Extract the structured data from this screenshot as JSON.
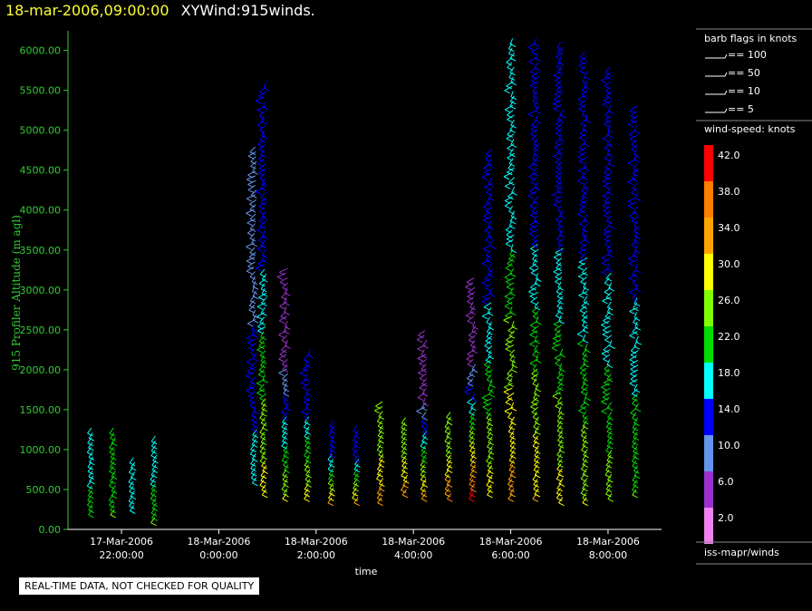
{
  "title": {
    "time": "18-mar-2006,09:00:00",
    "name": "XYWind:915winds."
  },
  "qc_note": "REAL-TIME DATA, NOT CHECKED FOR QUALITY",
  "source_label": "iss-mapr/winds",
  "colors": {
    "axis": "#33cc33",
    "text": "#ffffff",
    "background": "#000000"
  },
  "chart_data": {
    "type": "wind-barb",
    "ylabel": "915 Profiler Altitude (m agl)",
    "xlabel": "time",
    "ylim": [
      0,
      6200
    ],
    "yticks": [
      "0.00",
      "500.00",
      "1000.00",
      "1500.00",
      "2000.00",
      "2500.00",
      "3000.00",
      "3500.00",
      "4000.00",
      "4500.00",
      "5000.00",
      "5500.00",
      "6000.00"
    ],
    "xtick_values": [
      -2,
      0,
      2,
      4,
      6,
      8
    ],
    "xticks": [
      {
        "date": "17-Mar-2006",
        "time": "22:00:00"
      },
      {
        "date": "18-Mar-2006",
        "time": "0:00:00"
      },
      {
        "date": "18-Mar-2006",
        "time": "2:00:00"
      },
      {
        "date": "18-Mar-2006",
        "time": "4:00:00"
      },
      {
        "date": "18-Mar-2006",
        "time": "6:00:00"
      },
      {
        "date": "18-Mar-2006",
        "time": "8:00:00"
      }
    ],
    "barb_legend": {
      "title": "barb flags in knots",
      "items": [
        "== 100",
        "== 50",
        "== 10",
        "== 5"
      ]
    },
    "speed_legend": {
      "title": "wind-speed: knots",
      "levels": [
        {
          "label": "42.0",
          "color": "#ff0000"
        },
        {
          "label": "38.0",
          "color": "#ff7f00"
        },
        {
          "label": "34.0",
          "color": "#ffa500"
        },
        {
          "label": "30.0",
          "color": "#ffff00"
        },
        {
          "label": "26.0",
          "color": "#7fff00"
        },
        {
          "label": "22.0",
          "color": "#00dd00"
        },
        {
          "label": "18.0",
          "color": "#00ffff"
        },
        {
          "label": "14.0",
          "color": "#0000ff"
        },
        {
          "label": "10.0",
          "color": "#6495ed"
        },
        {
          "label": "6.0",
          "color": "#9932cc"
        },
        {
          "label": "2.0",
          "color": "#ee82ee"
        }
      ]
    },
    "profiles": [
      {
        "time": -2.6,
        "ymin": 250,
        "ymax": 1300,
        "upper_speed": 18,
        "lower_speed": 22
      },
      {
        "time": -2.15,
        "ymin": 250,
        "ymax": 1300,
        "upper_speed": 22,
        "lower_speed": 24
      },
      {
        "time": -1.75,
        "ymin": 300,
        "ymax": 900,
        "upper_speed": 18,
        "lower_speed": 18
      },
      {
        "time": -1.3,
        "ymin": 150,
        "ymax": 1200,
        "upper_speed": 18,
        "lower_speed": 24
      },
      {
        "time": 0.75,
        "ymin": 650,
        "ymax": 4800,
        "upper_speed": 10,
        "lower_speed": 18
      },
      {
        "time": 0.95,
        "ymin": 500,
        "ymax": 5600,
        "upper_speed": 14,
        "lower_speed": 30
      },
      {
        "time": 1.4,
        "ymin": 450,
        "ymax": 3300,
        "upper_speed": 6,
        "lower_speed": 28
      },
      {
        "time": 1.85,
        "ymin": 450,
        "ymax": 2300,
        "upper_speed": 14,
        "lower_speed": 30
      },
      {
        "time": 2.35,
        "ymin": 400,
        "ymax": 1400,
        "upper_speed": 14,
        "lower_speed": 32
      },
      {
        "time": 2.85,
        "ymin": 400,
        "ymax": 1300,
        "upper_speed": 14,
        "lower_speed": 32
      },
      {
        "time": 3.35,
        "ymin": 400,
        "ymax": 1600,
        "upper_speed": 26,
        "lower_speed": 34
      },
      {
        "time": 3.85,
        "ymin": 500,
        "ymax": 1400,
        "upper_speed": 26,
        "lower_speed": 34
      },
      {
        "time": 4.25,
        "ymin": 450,
        "ymax": 2500,
        "upper_speed": 6,
        "lower_speed": 34
      },
      {
        "time": 4.75,
        "ymin": 450,
        "ymax": 1500,
        "upper_speed": 26,
        "lower_speed": 36
      },
      {
        "time": 5.25,
        "ymin": 450,
        "ymax": 3200,
        "upper_speed": 6,
        "lower_speed": 42
      },
      {
        "time": 5.6,
        "ymin": 500,
        "ymax": 4800,
        "upper_speed": 14,
        "lower_speed": 30
      },
      {
        "time": 6.05,
        "ymin": 450,
        "ymax": 6150,
        "upper_speed": 18,
        "lower_speed": 34
      },
      {
        "time": 6.55,
        "ymin": 450,
        "ymax": 6150,
        "upper_speed": 14,
        "lower_speed": 32
      },
      {
        "time": 7.05,
        "ymin": 400,
        "ymax": 6150,
        "upper_speed": 14,
        "lower_speed": 30
      },
      {
        "time": 7.55,
        "ymin": 400,
        "ymax": 6000,
        "upper_speed": 14,
        "lower_speed": 28
      },
      {
        "time": 8.05,
        "ymin": 450,
        "ymax": 5800,
        "upper_speed": 14,
        "lower_speed": 26
      },
      {
        "time": 8.6,
        "ymin": 500,
        "ymax": 5300,
        "upper_speed": 14,
        "lower_speed": 24
      }
    ]
  }
}
